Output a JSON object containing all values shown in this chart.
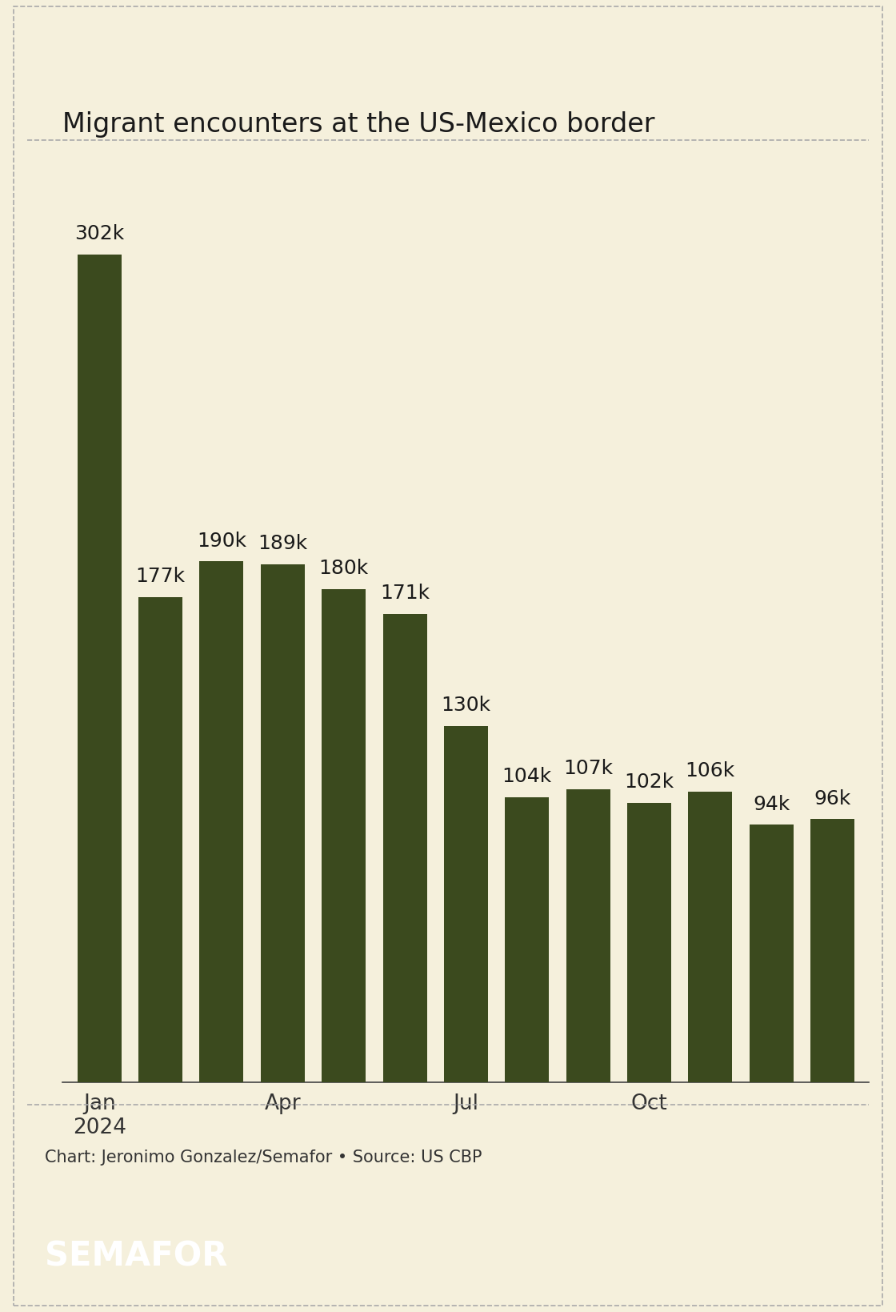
{
  "title": "Migrant encounters at the US-Mexico border",
  "values": [
    302000,
    177000,
    190000,
    189000,
    180000,
    171000,
    130000,
    104000,
    107000,
    102000,
    106000,
    94000,
    96000
  ],
  "labels": [
    "302k",
    "177k",
    "190k",
    "189k",
    "180k",
    "171k",
    "130k",
    "104k",
    "107k",
    "102k",
    "106k",
    "94k",
    "96k"
  ],
  "tick_labels": [
    "Jan\n2024",
    "",
    "",
    "Apr",
    "",
    "",
    "Jul",
    "",
    "",
    "Oct",
    "",
    "",
    ""
  ],
  "bar_color": "#3b4a1e",
  "background_color": "#f5f0dc",
  "border_color": "#aaaaaa",
  "title_fontsize": 24,
  "label_fontsize": 18,
  "tick_fontsize": 19,
  "footer_text": "Chart: Jeronimo Gonzalez/Semafor • Source: US CBP",
  "footer_brand": "SEMAFOR",
  "ylim": [
    0,
    335000
  ]
}
